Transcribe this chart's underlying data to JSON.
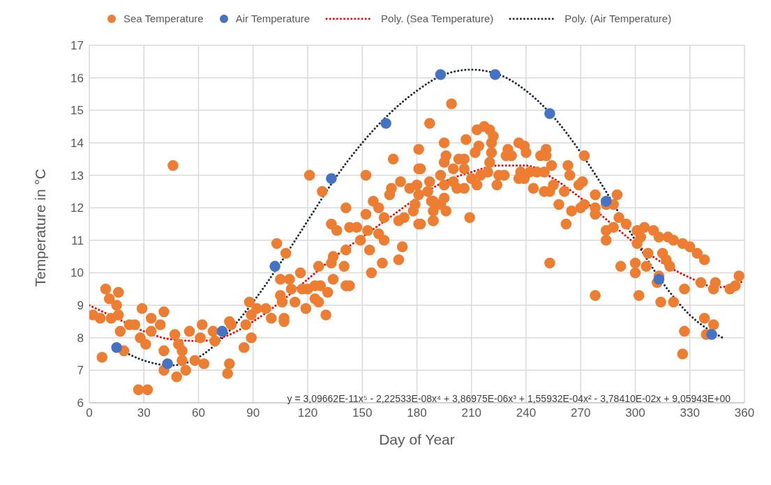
{
  "chart_data": {
    "type": "scatter",
    "xlabel": "Day of Year",
    "ylabel": "Temperature in °C",
    "xlim": [
      0,
      360
    ],
    "xticks": [
      0,
      30,
      60,
      90,
      120,
      150,
      180,
      210,
      240,
      270,
      300,
      330,
      360
    ],
    "ylim": [
      6,
      17
    ],
    "yticks": [
      6,
      7,
      8,
      9,
      10,
      11,
      12,
      13,
      14,
      15,
      16,
      17
    ],
    "grid": true,
    "legend": "top",
    "marker": "circle",
    "annotations": [
      "y = 3,09662E-11x⁵ - 2,22533E-08x⁴ + 3,86975E-06x³ + 1,55932E-04x² - 3,78410E-02x + 9,05943E+00"
    ],
    "series": [
      {
        "name": "Sea Temperature",
        "color": "#ed7d31",
        "x": [
          9,
          16,
          11,
          15,
          16,
          2,
          6,
          12,
          17,
          22,
          25,
          29,
          41,
          34,
          39,
          28,
          31,
          34,
          41,
          47,
          49,
          51,
          55,
          62,
          61,
          68,
          69,
          41,
          48,
          53,
          51,
          58,
          63,
          7,
          19,
          27,
          32,
          46,
          77,
          76,
          77,
          78,
          85,
          89,
          88,
          92,
          86,
          89,
          187,
          181,
          167,
          181,
          121,
          152,
          128,
          171,
          166,
          165,
          176,
          180,
          187,
          179,
          189,
          141,
          156,
          152,
          159,
          162,
          170,
          173,
          181,
          189,
          178,
          133,
          136,
          143,
          147,
          149,
          153,
          159,
          162,
          154,
          141,
          134,
          133,
          140,
          126,
          172,
          170,
          161,
          155,
          103,
          108,
          116,
          105,
          110,
          111,
          117,
          120,
          124,
          127,
          134,
          131,
          141,
          143,
          105,
          113,
          119,
          124,
          126,
          130,
          106,
          107,
          97,
          100,
          107,
          199,
          213,
          217,
          220,
          222,
          221,
          221,
          207,
          195,
          214,
          212,
          196,
          195,
          203,
          206,
          220,
          236,
          230,
          239,
          240,
          229,
          232,
          248,
          251,
          251,
          254,
          263,
          271,
          182,
          200,
          206,
          219,
          215,
          225,
          228,
          237,
          242,
          246,
          250,
          264,
          193,
          195,
          200,
          210,
          213,
          236,
          239,
          224,
          244,
          250,
          253,
          255,
          261,
          269,
          202,
          206,
          186,
          181,
          188,
          193,
          195,
          196,
          189,
          189,
          182,
          209,
          258,
          265,
          262,
          270,
          253,
          272,
          272,
          278,
          290,
          278,
          278,
          284,
          288,
          284,
          288,
          291,
          295,
          284,
          301,
          303,
          305,
          310,
          313,
          318,
          321,
          326,
          330,
          334,
          338,
          301,
          307,
          315,
          317,
          319,
          306,
          300,
          300,
          292,
          313,
          312,
          327,
          336,
          344,
          343,
          352,
          355,
          357,
          278,
          302,
          314,
          321,
          338,
          343,
          327,
          339,
          326
        ],
        "values": [
          9.5,
          9.4,
          9.2,
          9.0,
          8.7,
          8.7,
          8.6,
          8.6,
          8.2,
          8.4,
          8.4,
          8.9,
          8.8,
          8.6,
          8.4,
          8.0,
          7.8,
          8.2,
          7.6,
          8.1,
          7.8,
          7.6,
          8.2,
          8.4,
          8.0,
          8.2,
          7.9,
          7.0,
          6.8,
          7.0,
          7.3,
          7.3,
          7.2,
          7.4,
          7.6,
          6.4,
          6.4,
          13.3,
          7.2,
          6.9,
          8.5,
          8.4,
          7.7,
          8.0,
          9.1,
          8.9,
          8.4,
          8.7,
          14.6,
          13.8,
          13.5,
          13.2,
          13.0,
          13.0,
          12.5,
          12.8,
          12.6,
          12.4,
          12.6,
          12.7,
          12.8,
          12.1,
          12.2,
          12.0,
          12.2,
          11.8,
          12.0,
          11.7,
          11.6,
          11.7,
          11.5,
          11.6,
          11.9,
          11.5,
          11.3,
          11.4,
          11.4,
          11.0,
          11.3,
          11.2,
          11.0,
          10.7,
          10.7,
          10.5,
          10.3,
          10.2,
          10.2,
          10.8,
          10.4,
          10.3,
          10.0,
          10.9,
          10.6,
          10.0,
          9.8,
          9.8,
          9.5,
          9.5,
          9.5,
          9.6,
          9.6,
          9.8,
          9.4,
          9.6,
          9.6,
          9.3,
          9.1,
          8.9,
          9.2,
          9.1,
          8.7,
          9.1,
          8.6,
          8.9,
          8.6,
          8.5,
          15.2,
          14.4,
          14.5,
          14.4,
          14.2,
          14.0,
          13.7,
          14.1,
          14.0,
          13.9,
          13.7,
          13.6,
          13.4,
          13.5,
          13.5,
          13.4,
          14.0,
          13.8,
          13.9,
          13.7,
          13.6,
          13.6,
          13.6,
          13.8,
          13.6,
          13.3,
          13.3,
          12.8,
          13.2,
          13.2,
          13.2,
          13.1,
          13.0,
          13.0,
          13.0,
          13.1,
          13.1,
          13.1,
          13.1,
          13.0,
          13.0,
          12.7,
          12.8,
          12.9,
          12.7,
          12.9,
          12.9,
          12.7,
          12.6,
          12.5,
          12.5,
          12.7,
          12.5,
          12.7,
          12.6,
          12.6,
          12.5,
          12.4,
          12.2,
          12.1,
          12.3,
          11.9,
          11.9,
          11.6,
          11.5,
          11.7,
          12.1,
          11.9,
          11.5,
          12.0,
          10.3,
          13.6,
          12.1,
          12.4,
          12.4,
          12.0,
          11.8,
          12.1,
          12.1,
          11.3,
          11.4,
          11.7,
          11.5,
          11.0,
          11.3,
          11.1,
          11.4,
          11.3,
          11.1,
          11.1,
          11.0,
          10.9,
          10.8,
          10.6,
          10.4,
          10.9,
          10.6,
          10.6,
          10.4,
          10.2,
          10.2,
          10.3,
          10.0,
          10.2,
          9.9,
          9.7,
          9.5,
          9.7,
          9.7,
          9.5,
          9.5,
          9.6,
          9.9,
          9.3,
          9.3,
          9.1,
          9.1,
          8.6,
          8.4,
          8.2,
          8.1,
          7.5
        ]
      },
      {
        "name": "Air Temperature",
        "color": "#4472c4",
        "x": [
          15,
          43,
          73,
          102,
          133,
          163,
          193,
          223,
          253,
          284,
          313,
          342
        ],
        "values": [
          7.7,
          7.2,
          8.2,
          10.2,
          12.9,
          14.6,
          16.1,
          16.1,
          14.9,
          12.2,
          9.8,
          8.1
        ]
      },
      {
        "name": "Poly. (Sea Temperature)",
        "type": "line",
        "line_style": "dotted",
        "marker": "none",
        "color": "#ff0000",
        "x": [
          0,
          15,
          30,
          45,
          60,
          75,
          90,
          105,
          120,
          135,
          150,
          165,
          180,
          195,
          210,
          225,
          240,
          255,
          270,
          285,
          300,
          315,
          330,
          345,
          360
        ],
        "values": [
          9.0,
          8.6,
          8.2,
          7.95,
          7.9,
          8.05,
          8.5,
          9.1,
          9.8,
          10.5,
          11.1,
          11.7,
          12.3,
          12.8,
          13.1,
          13.3,
          13.3,
          12.9,
          12.3,
          11.6,
          10.9,
          10.3,
          9.85,
          9.55,
          9.75
        ]
      },
      {
        "name": "Poly. (Air Temperature)",
        "type": "line",
        "line_style": "dotted",
        "marker": "none",
        "color": "#1f2a3a",
        "x": [
          15,
          30,
          45,
          60,
          75,
          90,
          105,
          120,
          135,
          150,
          165,
          180,
          195,
          210,
          225,
          240,
          255,
          270,
          285,
          300,
          315,
          330,
          348
        ],
        "values": [
          7.7,
          7.3,
          7.15,
          7.4,
          8.1,
          9.1,
          10.3,
          11.6,
          12.9,
          14.0,
          14.9,
          15.6,
          16.1,
          16.25,
          16.1,
          15.6,
          14.8,
          13.7,
          12.4,
          11.0,
          9.7,
          8.7,
          8.0
        ]
      }
    ]
  }
}
